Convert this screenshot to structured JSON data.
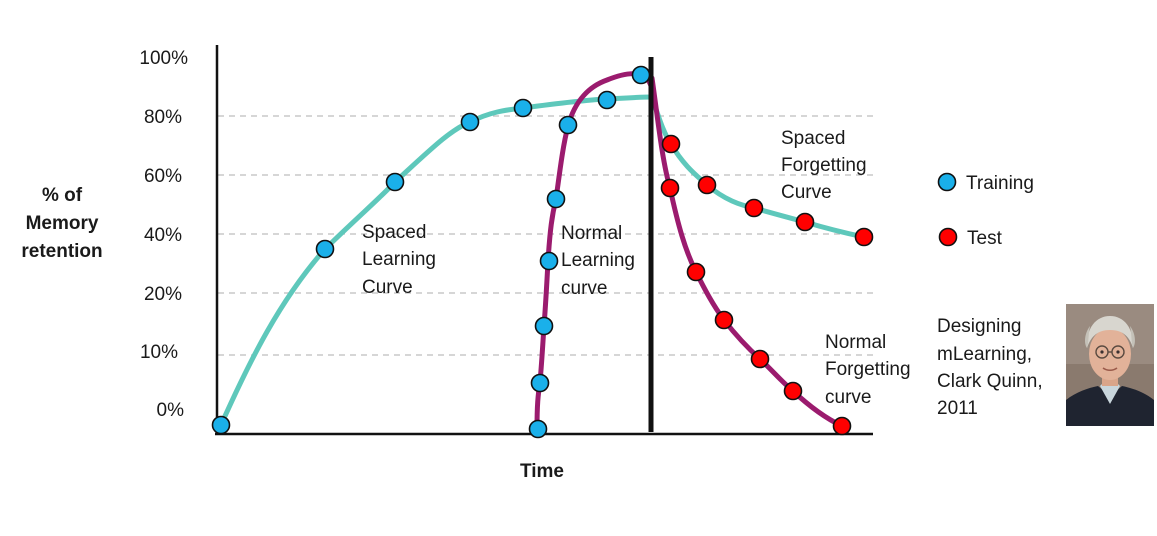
{
  "chart_data": {
    "type": "line",
    "xlabel": "Time",
    "ylabel_lines": [
      "% of",
      "Memory",
      "retention"
    ],
    "y_ticks": [
      "0%",
      "10%",
      "20%",
      "40%",
      "60%",
      "80%",
      "100%"
    ],
    "grid": "horizontal dashed",
    "legend": {
      "placement": "right",
      "entries": [
        {
          "label": "Training",
          "color": "#1ab0ea"
        },
        {
          "label": "Test",
          "color": "#ff0000"
        }
      ]
    },
    "curve_labels": {
      "spaced_learning": [
        "Spaced",
        "Learning",
        "Curve"
      ],
      "normal_learning": [
        "Normal",
        "Learning",
        "curve"
      ],
      "spaced_forgetting": [
        "Spaced",
        "Forgetting",
        "Curve"
      ],
      "normal_forgetting": [
        "Normal",
        "Forgetting",
        "curve"
      ]
    },
    "series": [
      {
        "id": "spaced_learning",
        "color": "#5ec8bb",
        "marker": "Training",
        "x": [
          0.5,
          2.1,
          3.3,
          4.5,
          5.3
        ],
        "y": [
          -5,
          35,
          58,
          78,
          83
        ]
      },
      {
        "id": "normal_learning",
        "color": "#9b1b6e",
        "marker": "Training",
        "x": [
          5.6,
          5.65,
          5.75,
          5.9,
          6.0,
          6.1
        ],
        "y": [
          -6,
          3,
          15,
          32,
          52,
          77
        ]
      },
      {
        "id": "training_plateau",
        "color": "#5ec8bb",
        "marker": "Training",
        "x": [
          6.5,
          7.0
        ],
        "y": [
          85,
          94
        ]
      },
      {
        "id": "spaced_forgetting",
        "color": "#5ec8bb",
        "marker": "Test",
        "x": [
          7.3,
          8.0,
          8.7,
          9.4,
          10.3
        ],
        "y": [
          71,
          57,
          49,
          44,
          39
        ]
      },
      {
        "id": "normal_forgetting",
        "color": "#9b1b6e",
        "marker": "Test",
        "x": [
          7.3,
          7.75,
          8.2,
          8.7,
          9.2,
          9.8
        ],
        "y": [
          56,
          28,
          16,
          9,
          4,
          -6
        ]
      }
    ],
    "divider_label": ""
  },
  "attribution": {
    "lines": [
      "Designing",
      "mLearning,",
      "Clark Quinn,",
      "2011"
    ],
    "photo_icon": "portrait-photo"
  },
  "colors": {
    "training_marker": "#1ab0ea",
    "test_marker": "#ff0000",
    "spaced_curve": "#5ec8bb",
    "normal_curve": "#9b1b6e"
  }
}
